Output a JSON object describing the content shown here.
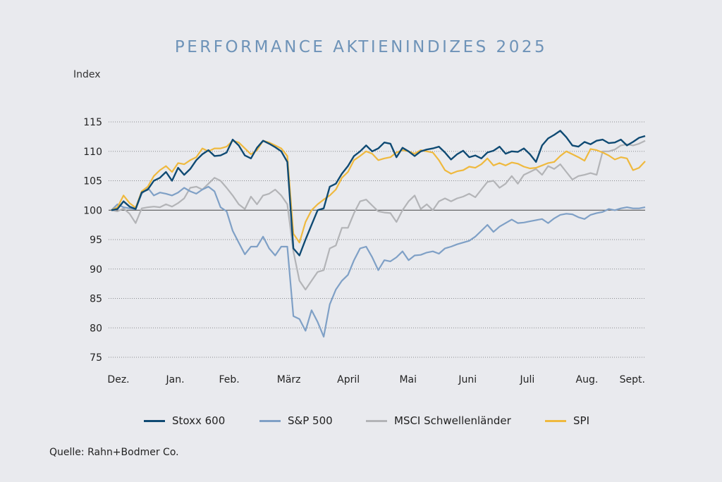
{
  "title": "PERFORMANCE AKTIENINDIZES 2025",
  "source": "Quelle: Rahn+Bodmer Co.",
  "chart_data": {
    "type": "line",
    "title": "PERFORMANCE AKTIENINDIZES 2025",
    "ylabel": "Index",
    "xlabel": "",
    "ylim": [
      75,
      115
    ],
    "yticks": [
      115,
      110,
      105,
      100,
      95,
      90,
      85,
      80,
      75
    ],
    "baseline": 100,
    "grid": "horizontal-dotted",
    "legend_position": "bottom",
    "x_range": [
      0,
      94
    ],
    "x_ticks": [
      {
        "label": "Dez.",
        "x": 0.5
      },
      {
        "label": "Jan.",
        "x": 10.5
      },
      {
        "label": "Feb.",
        "x": 20
      },
      {
        "label": "März",
        "x": 30.5
      },
      {
        "label": "April",
        "x": 41
      },
      {
        "label": "Mai",
        "x": 51.5
      },
      {
        "label": "Juni",
        "x": 62
      },
      {
        "label": "Juli",
        "x": 72.5
      },
      {
        "label": "Aug.",
        "x": 83
      },
      {
        "label": "Sept.",
        "x": 91
      }
    ],
    "series": [
      {
        "name": "Stoxx 600",
        "color": "#0f4a73",
        "values": [
          100,
          100.2,
          101.5,
          100.6,
          100.2,
          103.0,
          103.5,
          105.0,
          105.5,
          106.5,
          105.0,
          107.2,
          106.0,
          107.0,
          108.5,
          109.5,
          110.2,
          109.2,
          109.3,
          109.8,
          112.0,
          111.0,
          109.3,
          108.8,
          110.6,
          111.8,
          111.3,
          110.7,
          110.0,
          108.2,
          93.5,
          92.3,
          95.0,
          97.5,
          100.0,
          100.3,
          104.0,
          104.5,
          106.2,
          107.5,
          109.2,
          110.0,
          111.0,
          110.0,
          110.5,
          111.5,
          111.3,
          109.0,
          110.6,
          110.0,
          109.2,
          110.0,
          110.3,
          110.5,
          110.8,
          109.8,
          108.6,
          109.5,
          110.1,
          109.0,
          109.3,
          108.8,
          109.8,
          110.1,
          110.8,
          109.6,
          110.0,
          109.9,
          110.5,
          109.5,
          108.2,
          111.0,
          112.2,
          112.8,
          113.5,
          112.4,
          111.0,
          110.8,
          111.6,
          111.2,
          111.8,
          112.0,
          111.4,
          111.5,
          112.0,
          111.0,
          111.6,
          112.3,
          112.6
        ]
      },
      {
        "name": "S&P 500",
        "color": "#7fa0c6",
        "values": [
          100,
          101.0,
          100.5,
          100.3,
          100.2,
          102.8,
          103.8,
          102.5,
          103.0,
          102.8,
          102.5,
          103.0,
          103.8,
          103.2,
          102.8,
          103.5,
          104.0,
          103.2,
          100.5,
          99.8,
          96.5,
          94.5,
          92.5,
          93.8,
          93.8,
          95.5,
          93.5,
          92.3,
          93.8,
          93.8,
          82.0,
          81.5,
          79.5,
          83.0,
          81.0,
          78.5,
          84.0,
          86.5,
          88.0,
          89.0,
          91.5,
          93.5,
          93.8,
          92.0,
          89.8,
          91.5,
          91.3,
          92.0,
          93.0,
          91.5,
          92.3,
          92.4,
          92.8,
          93.0,
          92.6,
          93.5,
          93.8,
          94.2,
          94.5,
          94.8,
          95.5,
          96.5,
          97.5,
          96.3,
          97.2,
          97.8,
          98.4,
          97.8,
          97.9,
          98.1,
          98.3,
          98.5,
          97.8,
          98.6,
          99.2,
          99.4,
          99.3,
          98.8,
          98.5,
          99.2,
          99.5,
          99.7,
          100.2,
          100.0,
          100.3,
          100.5,
          100.3,
          100.3,
          100.5
        ]
      },
      {
        "name": "MSCI Schwellenländer",
        "color": "#b3b4b7",
        "values": [
          100,
          99.8,
          100.3,
          99.4,
          97.8,
          100.3,
          100.5,
          100.6,
          100.5,
          101.0,
          100.6,
          101.2,
          102.0,
          103.8,
          104.0,
          103.5,
          104.5,
          105.5,
          105.0,
          103.8,
          102.5,
          101.0,
          100.2,
          102.3,
          101.0,
          102.5,
          102.8,
          103.5,
          102.5,
          101.0,
          93.0,
          88.0,
          86.5,
          88.0,
          89.5,
          89.8,
          93.5,
          94.0,
          97.0,
          97.0,
          99.5,
          101.5,
          101.8,
          100.8,
          99.8,
          99.6,
          99.5,
          98.0,
          100.0,
          101.5,
          102.5,
          100.2,
          101.0,
          100.0,
          101.5,
          102.0,
          101.5,
          102.0,
          102.3,
          102.8,
          102.2,
          103.5,
          104.8,
          105.0,
          103.8,
          104.5,
          105.8,
          104.5,
          106.0,
          106.5,
          107.0,
          106.0,
          107.5,
          107.0,
          107.8,
          106.5,
          105.2,
          105.8,
          106.0,
          106.3,
          106.0,
          110.0,
          110.0,
          110.3,
          111.0,
          111.2,
          111.0,
          111.3,
          111.8
        ]
      },
      {
        "name": "SPI",
        "color": "#efb93e",
        "values": [
          100,
          100.5,
          102.5,
          101.2,
          100.4,
          103.2,
          104.0,
          105.8,
          106.8,
          107.5,
          106.5,
          108.0,
          107.8,
          108.5,
          109.0,
          110.5,
          110.0,
          110.5,
          110.5,
          110.8,
          111.8,
          111.5,
          110.5,
          109.5,
          110.2,
          111.8,
          111.5,
          111.0,
          110.5,
          109.2,
          96.0,
          94.5,
          98.0,
          100.0,
          101.0,
          101.8,
          102.5,
          103.5,
          105.5,
          106.5,
          108.5,
          109.2,
          110.0,
          109.6,
          108.5,
          108.8,
          109.0,
          109.8,
          110.2,
          110.0,
          109.6,
          110.2,
          110.0,
          109.8,
          108.5,
          106.8,
          106.2,
          106.6,
          106.8,
          107.4,
          107.2,
          107.8,
          108.8,
          107.6,
          108.0,
          107.6,
          108.1,
          107.9,
          107.4,
          107.1,
          107.2,
          107.6,
          108.0,
          108.2,
          109.2,
          110.0,
          109.5,
          109.0,
          108.4,
          110.4,
          110.2,
          109.8,
          109.3,
          108.6,
          109.0,
          108.8,
          106.8,
          107.2,
          108.3
        ]
      }
    ]
  },
  "legend": [
    {
      "label": "Stoxx 600",
      "color": "#0f4a73"
    },
    {
      "label": "S&P 500",
      "color": "#7fa0c6"
    },
    {
      "label": "MSCI Schwellenländer",
      "color": "#b3b4b7"
    },
    {
      "label": "SPI",
      "color": "#efb93e"
    }
  ]
}
